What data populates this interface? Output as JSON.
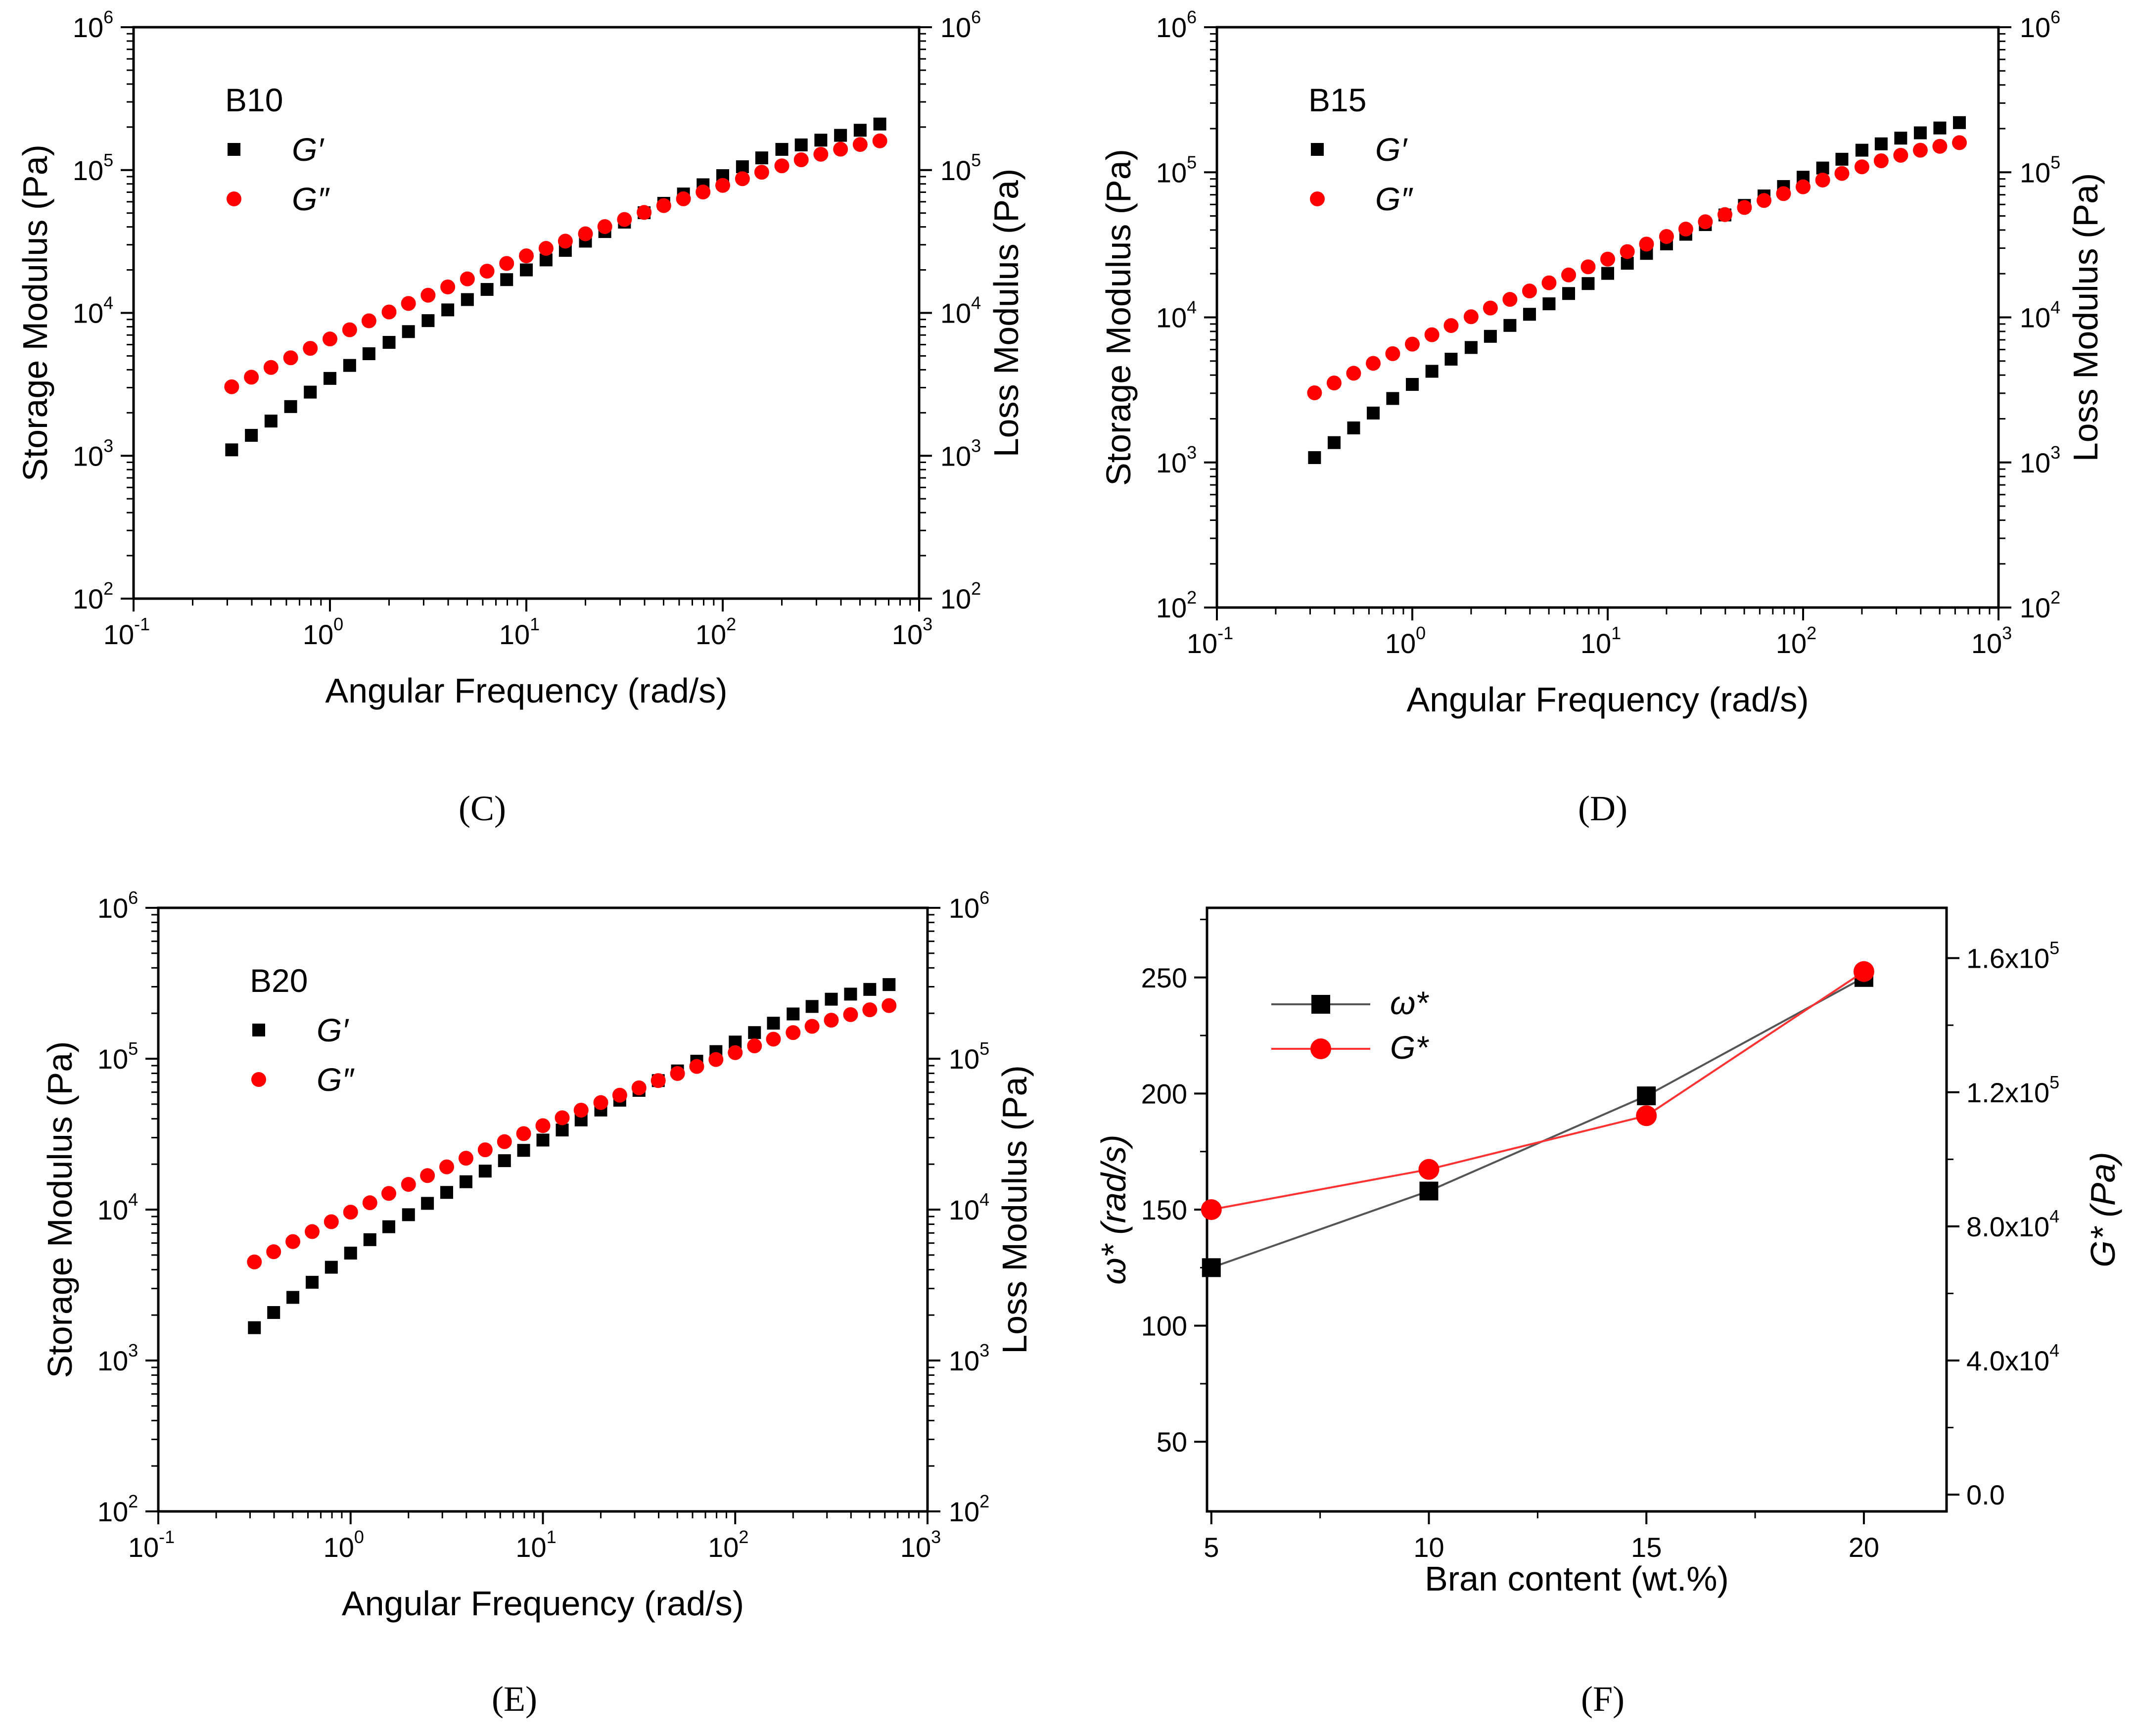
{
  "figure": {
    "panel_labels": [
      "(C)",
      "(D)",
      "(E)",
      "(F)"
    ]
  },
  "chart_data": [
    {
      "type": "scatter",
      "panel": "C",
      "legend_title": "B10",
      "xlabel": "Angular Frequency (rad/s)",
      "ylabel": "Storage Modulus (Pa)",
      "y2label": "Loss Modulus (Pa)",
      "xscale": "log",
      "yscale": "log",
      "xlim": [
        0.1,
        1000
      ],
      "ylim": [
        100,
        1000000
      ],
      "y2lim": [
        100,
        1000000
      ],
      "legend_position": "top-left",
      "x": [
        0.316,
        0.398,
        0.501,
        0.631,
        0.794,
        1.0,
        1.26,
        1.58,
        2.0,
        2.51,
        3.16,
        3.98,
        5.01,
        6.31,
        7.94,
        10.0,
        12.6,
        15.8,
        20.0,
        25.1,
        31.6,
        39.8,
        50.1,
        63.1,
        79.4,
        100,
        126,
        158,
        200,
        251,
        316,
        398,
        501,
        631
      ],
      "series": [
        {
          "name": "G′",
          "marker": "square",
          "color": "#000000",
          "values": [
            1100,
            1390,
            1750,
            2210,
            2790,
            3480,
            4290,
            5180,
            6220,
            7400,
            8830,
            10500,
            12400,
            14600,
            17100,
            20000,
            23500,
            27400,
            31800,
            37100,
            43200,
            50300,
            58500,
            68000,
            78900,
            91400,
            105500,
            121700,
            139600,
            150000,
            162000,
            175000,
            190000,
            210000
          ]
        },
        {
          "name": "G″",
          "marker": "circle",
          "color": "#ff0000",
          "values": [
            3040,
            3550,
            4150,
            4850,
            5650,
            6570,
            7620,
            8800,
            10150,
            11650,
            13300,
            15200,
            17300,
            19600,
            22200,
            25100,
            28300,
            31800,
            35800,
            40200,
            45100,
            50500,
            56400,
            62900,
            70200,
            78100,
            87000,
            96600,
            107000,
            118000,
            129000,
            140000,
            151000,
            160000
          ]
        }
      ]
    },
    {
      "type": "scatter",
      "panel": "D",
      "legend_title": "B15",
      "xlabel": "Angular Frequency (rad/s)",
      "ylabel": "Storage Modulus (Pa)",
      "y2label": "Loss Modulus (Pa)",
      "xscale": "log",
      "yscale": "log",
      "xlim": [
        0.1,
        1000
      ],
      "ylim": [
        100,
        1000000
      ],
      "y2lim": [
        100,
        1000000
      ],
      "legend_position": "top-left",
      "x": [
        0.316,
        0.398,
        0.501,
        0.631,
        0.794,
        1.0,
        1.26,
        1.58,
        2.0,
        2.51,
        3.16,
        3.98,
        5.01,
        6.31,
        7.94,
        10.0,
        12.6,
        15.8,
        20.0,
        25.1,
        31.6,
        39.8,
        50.1,
        63.1,
        79.4,
        100,
        126,
        158,
        200,
        251,
        316,
        398,
        501,
        631
      ],
      "series": [
        {
          "name": "G′",
          "marker": "square",
          "color": "#000000",
          "values": [
            1080,
            1370,
            1730,
            2190,
            2760,
            3450,
            4250,
            5150,
            6200,
            7400,
            8800,
            10500,
            12400,
            14600,
            17100,
            20100,
            23600,
            27600,
            32100,
            37400,
            43600,
            50800,
            59100,
            68700,
            79800,
            92500,
            107000,
            123000,
            142000,
            157000,
            172000,
            187000,
            202000,
            220000
          ]
        },
        {
          "name": "G″",
          "marker": "circle",
          "color": "#ff0000",
          "values": [
            3020,
            3530,
            4120,
            4820,
            5620,
            6540,
            7590,
            8780,
            10100,
            11600,
            13300,
            15200,
            17300,
            19600,
            22300,
            25200,
            28400,
            32000,
            36100,
            40600,
            45600,
            51100,
            57200,
            63900,
            71300,
            79400,
            88400,
            98200,
            109000,
            120000,
            131000,
            142000,
            151000,
            160000
          ]
        }
      ]
    },
    {
      "type": "scatter",
      "panel": "E",
      "legend_title": "B20",
      "xlabel": "Angular Frequency (rad/s)",
      "ylabel": "Storage Modulus (Pa)",
      "y2label": "Loss Modulus (Pa)",
      "xscale": "log",
      "yscale": "log",
      "xlim": [
        0.1,
        1000
      ],
      "ylim": [
        100,
        1000000
      ],
      "y2lim": [
        100,
        1000000
      ],
      "legend_position": "top-left",
      "x": [
        0.316,
        0.398,
        0.501,
        0.631,
        0.794,
        1.0,
        1.26,
        1.58,
        2.0,
        2.51,
        3.16,
        3.98,
        5.01,
        6.31,
        7.94,
        10.0,
        12.6,
        15.8,
        20.0,
        25.1,
        31.6,
        39.8,
        50.1,
        63.1,
        79.4,
        100,
        126,
        158,
        200,
        251,
        316,
        398,
        501,
        631
      ],
      "series": [
        {
          "name": "G′",
          "marker": "square",
          "color": "#000000",
          "values": [
            1650,
            2080,
            2620,
            3300,
            4150,
            5150,
            6320,
            7700,
            9250,
            11000,
            13000,
            15300,
            18000,
            21100,
            24700,
            28900,
            33700,
            39300,
            45700,
            53100,
            61700,
            71600,
            83000,
            96300,
            111500,
            129000,
            149000,
            172000,
            198000,
            222000,
            248000,
            268000,
            288000,
            310000
          ]
        },
        {
          "name": "G″",
          "marker": "circle",
          "color": "#ff0000",
          "values": [
            4500,
            5260,
            6140,
            7150,
            8310,
            9620,
            11100,
            12800,
            14700,
            16800,
            19200,
            21900,
            24900,
            28200,
            31900,
            36000,
            40600,
            45600,
            51200,
            57300,
            64100,
            71600,
            79800,
            88900,
            98800,
            109700,
            121700,
            134800,
            148900,
            164000,
            180000,
            196000,
            211000,
            225000
          ]
        }
      ]
    },
    {
      "type": "line",
      "panel": "F",
      "xlabel": "Bran content (wt.%)",
      "ylabel": "ω* (rad/s)",
      "y2label": "G* (Pa)",
      "xlim": [
        4.9,
        21.9
      ],
      "ylim": [
        20,
        280
      ],
      "y2lim": [
        -5000,
        175000
      ],
      "x_ticks": [
        5,
        10,
        15,
        20
      ],
      "y_ticks": [
        50,
        100,
        150,
        200,
        250
      ],
      "y2_ticks": [
        "0.0",
        "4.0x10^4",
        "8.0x10^4",
        "1.2x10^5",
        "1.6x10^5"
      ],
      "legend_position": "top-left",
      "x": [
        5,
        10,
        15,
        20
      ],
      "series": [
        {
          "name": "ω*",
          "axis": "left",
          "marker": "square",
          "color": "#000000",
          "line_color": "#555555",
          "values": [
            125,
            158,
            199,
            250
          ]
        },
        {
          "name": "G*",
          "axis": "right",
          "marker": "circle",
          "color": "#ff0000",
          "line_color": "#ff3333",
          "values": [
            85000,
            97000,
            113000,
            156000
          ]
        }
      ]
    }
  ]
}
